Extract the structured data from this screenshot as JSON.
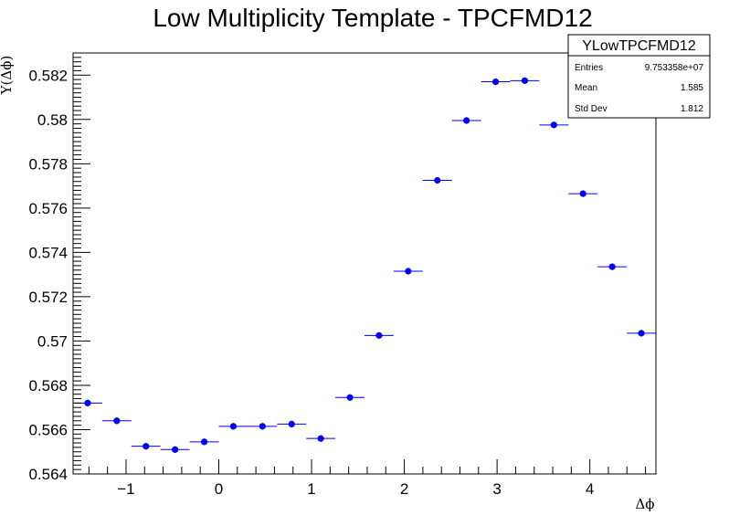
{
  "chart_data": {
    "type": "scatter",
    "title": "Low Multiplicity Template - TPCFMD12",
    "xlabel": "Δϕ",
    "ylabel": "Y(Δϕ)",
    "xlim": [
      -1.5708,
      4.7124
    ],
    "ylim": [
      0.564,
      0.583
    ],
    "x_ticks": [
      -1,
      0,
      1,
      2,
      3,
      4
    ],
    "x_tick_labels": [
      "−1",
      "0",
      "1",
      "2",
      "3",
      "4"
    ],
    "y_ticks": [
      0.564,
      0.566,
      0.568,
      0.57,
      0.572,
      0.574,
      0.576,
      0.578,
      0.58,
      0.582
    ],
    "y_tick_labels": [
      "0.564",
      "0.566",
      "0.568",
      "0.57",
      "0.572",
      "0.574",
      "0.576",
      "0.578",
      "0.58",
      "0.582"
    ],
    "grid": false,
    "legend": "none",
    "marker_color": "#0000ff",
    "series": [
      {
        "x": [
          -1.4137,
          -1.0996,
          -0.7854,
          -0.4712,
          -0.1571,
          0.1571,
          0.4712,
          0.7854,
          1.0996,
          1.4137,
          1.7279,
          2.042,
          2.3562,
          2.6704,
          2.9845,
          3.2987,
          3.6128,
          3.927,
          4.2412,
          4.5553
        ],
        "y": [
          0.5672,
          0.5664,
          0.56525,
          0.5651,
          0.56545,
          0.56615,
          0.56615,
          0.56625,
          0.5656,
          0.56745,
          0.57025,
          0.57315,
          0.57725,
          0.57995,
          0.5817,
          0.58175,
          0.57975,
          0.57665,
          0.57335,
          0.57035
        ],
        "x_err": 0.1571,
        "y_err": [
          0.00015,
          0.00015,
          0.00015,
          0.00015,
          0.00015,
          0.00015,
          0.00015,
          0.00015,
          0.00015,
          0.00015,
          0.00015,
          0.00015,
          0.00015,
          0.00015,
          0.00015,
          0.00015,
          0.00015,
          0.00015,
          0.00015,
          0.00015
        ]
      }
    ]
  },
  "stats_box": {
    "name": "YLowTPCFMD12",
    "rows": [
      {
        "key": "Entries",
        "value": "9.753358e+07"
      },
      {
        "key": "Mean",
        "value": "1.585"
      },
      {
        "key": "Std Dev",
        "value": "1.812"
      }
    ]
  }
}
